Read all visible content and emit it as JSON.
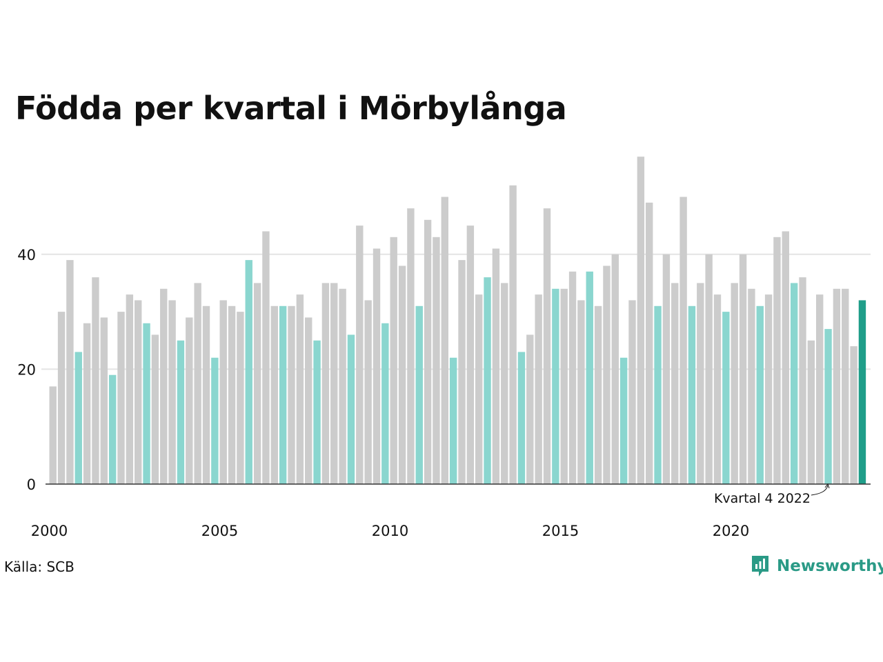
{
  "title": "Födda per kvartal i Mörbylånga",
  "source": "Källa: SCB",
  "brand": "Newsworthy",
  "annotation": "Kvartal 4 2022",
  "colors": {
    "other": "#cccccc",
    "q1": "#8ad6cf",
    "latest": "#1f9e89",
    "axis": "#333333",
    "grid": "#e4e4e4"
  },
  "chart_data": {
    "type": "bar",
    "xlabel": "",
    "ylabel": "",
    "ylim": [
      0,
      57
    ],
    "yticks": [
      0,
      20,
      40
    ],
    "xticks": [
      "2000",
      "2005",
      "2010",
      "2015",
      "2020"
    ],
    "grid": true,
    "start_year": 2000,
    "values": [
      17,
      30,
      39,
      23,
      28,
      36,
      29,
      19,
      30,
      33,
      32,
      28,
      26,
      34,
      32,
      25,
      29,
      35,
      31,
      22,
      32,
      31,
      30,
      39,
      35,
      44,
      31,
      31,
      31,
      33,
      29,
      25,
      35,
      35,
      34,
      26,
      45,
      32,
      41,
      28,
      43,
      38,
      48,
      31,
      46,
      43,
      50,
      22,
      39,
      45,
      33,
      36,
      41,
      35,
      52,
      23,
      26,
      33,
      48,
      34,
      34,
      37,
      32,
      37,
      31,
      38,
      40,
      22,
      32,
      57,
      49,
      31,
      40,
      35,
      50,
      31,
      35,
      40,
      33,
      30,
      35,
      40,
      34,
      31,
      33,
      43,
      44,
      35,
      36,
      25,
      33,
      27,
      34,
      34,
      24,
      32
    ]
  }
}
